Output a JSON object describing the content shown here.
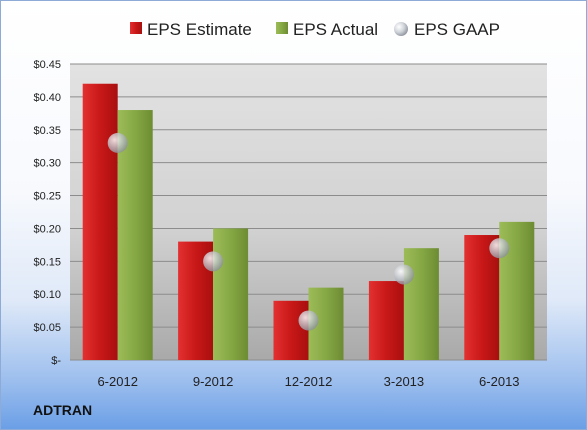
{
  "company": "ADTRAN",
  "colors": {
    "estimate": "#cc1a1a",
    "actual": "#86a844",
    "gaap": "#b9bfc8"
  },
  "chart_data": {
    "type": "bar",
    "categories": [
      "6-2012",
      "9-2012",
      "12-2012",
      "3-2013",
      "6-2013"
    ],
    "series": [
      {
        "name": "EPS Estimate",
        "values": [
          0.42,
          0.18,
          0.09,
          0.12,
          0.19
        ]
      },
      {
        "name": "EPS Actual",
        "values": [
          0.38,
          0.2,
          0.11,
          0.17,
          0.21
        ]
      },
      {
        "name": "EPS GAAP",
        "values": [
          0.33,
          0.15,
          0.06,
          0.13,
          0.17
        ]
      }
    ],
    "yticks": [
      0,
      0.05,
      0.1,
      0.15,
      0.2,
      0.25,
      0.3,
      0.35,
      0.4,
      0.45
    ],
    "ytick_labels": [
      "$-",
      "$0.05",
      "$0.10",
      "$0.15",
      "$0.20",
      "$0.25",
      "$0.30",
      "$0.35",
      "$0.40",
      "$0.45"
    ],
    "ylim": [
      0,
      0.45
    ],
    "grid": true,
    "legend": "top"
  }
}
